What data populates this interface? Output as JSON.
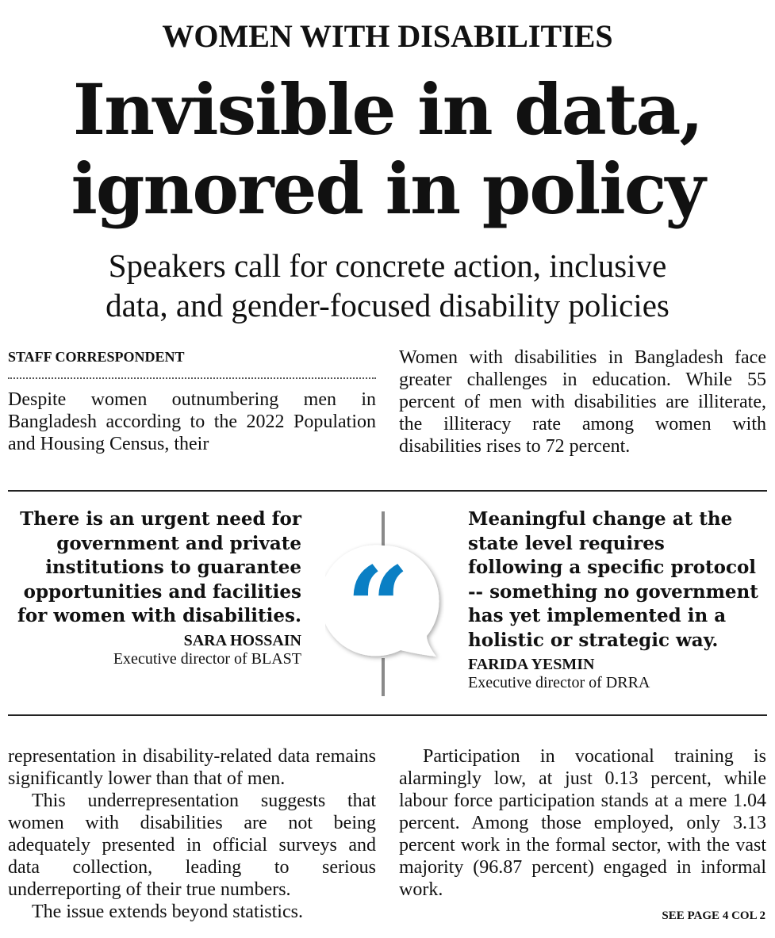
{
  "kicker": "WOMEN WITH DISABILITIES",
  "headline": {
    "line1": "Invisible in data,",
    "line2": "ignored in policy"
  },
  "subhead": {
    "line1": "Speakers call for concrete action, inclusive",
    "line2": "data, and gender-focused disability policies"
  },
  "byline": "STAFF CORRESPONDENT",
  "top_left_text": "Despite women outnumbering men in Bangladesh according to the 2022 Population and Housing Census, their",
  "top_right_text": "Women with disabilities in Bangladesh face greater challenges in education. While 55 percent of men with disabilities are illiterate, the illiteracy rate among women with disabilities rises to 72 percent.",
  "quotes": [
    {
      "text": "There is an urgent need for government and private institutions to guarantee opportunities and facilities for women with disabilities.",
      "name": "SARA HOSSAIN",
      "role": "Executive director of BLAST"
    },
    {
      "text": "Meaningful change at the state level requires following a specific protocol -- something no government has yet implemented in a holistic or strategic way.",
      "name": "FARIDA YESMIN",
      "role": "Executive director of DRRA"
    }
  ],
  "quote_icon": "speech-bubble-quote-icon",
  "accent_color": "#0a7fc4",
  "bottom_left": [
    "representation in disability-related data remains significantly lower than that of men.",
    "This underrepresentation suggests that women with disabilities are not being adequately presented in official surveys and data collection, leading to serious underreporting of their true numbers.",
    "The issue extends beyond statistics."
  ],
  "bottom_right": [
    "Participation in vocational training is alarmingly low, at just 0.13 percent, while labour force participation stands at a mere 1.04 percent. Among those employed, only 3.13 percent work in the formal sector, with the vast majority (96.87 percent) engaged in informal work."
  ],
  "continuation": "SEE PAGE 4 COL 2"
}
